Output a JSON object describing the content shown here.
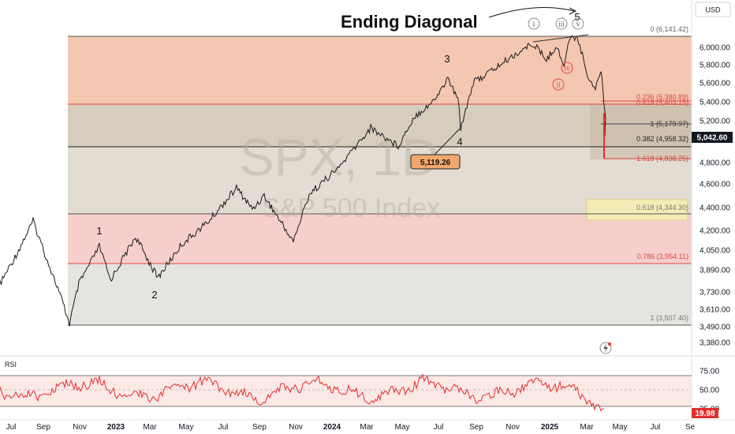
{
  "ui": {
    "currency": "USD",
    "watermark_symbol": "SPX, 1D",
    "watermark_name": "S&P 500 Index",
    "title": "Ending Diagonal",
    "price_tag": "5,042.60",
    "callout": "5,119.26",
    "rsi_title": "RSI",
    "rsi_tag": "19.98"
  },
  "chart_data": [
    {
      "type": "line",
      "title": "SPX, 1D",
      "subtitle": "S&P 500 Index",
      "ylim": [
        3300,
        6250
      ],
      "y_ticks": [
        "6,000.00",
        "5,800.00",
        "5,600.00",
        "5,400.00",
        "5,200.00",
        "5,000.00",
        "4,800.00",
        "4,600.00",
        "4,400.00",
        "4,200.00",
        "4,050.00",
        "3,890.00",
        "3,730.00",
        "3,610.00",
        "3,490.00",
        "3,380.00"
      ],
      "x_ticks": [
        "Jul",
        "Sep",
        "Nov",
        "2023",
        "Mar",
        "May",
        "Jul",
        "Sep",
        "Nov",
        "2024",
        "Mar",
        "May",
        "Jul",
        "Sep",
        "Nov",
        "2025",
        "Mar",
        "May",
        "Jul",
        "Se"
      ],
      "series": [
        {
          "x": [
            "2022-06",
            "2022-08",
            "2022-10",
            "2022-11",
            "2022-12",
            "2023-02",
            "2023-03",
            "2023-04",
            "2023-06",
            "2023-07",
            "2023-08",
            "2023-10",
            "2023-12",
            "2024-02",
            "2024-04",
            "2024-05",
            "2024-07",
            "2024-08",
            "2024-09",
            "2024-10",
            "2024-12",
            "2025-01",
            "2025-02",
            "2025-02",
            "2025-03",
            "2025-03",
            "2025-04"
          ],
          "y": [
            3800,
            4300,
            3490,
            4000,
            3800,
            4180,
            3830,
            4150,
            4300,
            4600,
            4370,
            4110,
            4750,
            5050,
            5250,
            4980,
            5650,
            5119,
            5700,
            5870,
            6090,
            5780,
            6141,
            6100,
            5850,
            5620,
            5040
          ]
        }
      ],
      "fib_levels": [
        {
          "label": "0 (6,141.42)",
          "value": 6141.42
        },
        {
          "label": "0.236 (5,380.89)",
          "value": 5380.89
        },
        {
          "label": "0.618 (5,403.15)",
          "value": 5403.15
        },
        {
          "label": "1 (5,179.97)",
          "value": 5179.97
        },
        {
          "label": "0.382 (4,958.32)",
          "value": 4958.32
        },
        {
          "label": "1.618 (4,838.25)",
          "value": 4838.25
        },
        {
          "label": "0.618 (4,344.30)",
          "value": 4344.3
        },
        {
          "label": "0.786 (3,954.11)",
          "value": 3954.11
        },
        {
          "label": "1 (3,507.40)",
          "value": 3507.4
        }
      ],
      "wave_labels": [
        "1",
        "2",
        "3",
        "4",
        "5",
        "i",
        "ii",
        "iii",
        "iv",
        "v"
      ]
    },
    {
      "type": "line",
      "title": "RSI",
      "ylim": [
        20,
        90
      ],
      "y_ticks": [
        "75.00",
        "50.00",
        "25.00"
      ],
      "levels": [
        70,
        50,
        30
      ],
      "last_value": 19.98
    }
  ],
  "colors": {
    "zone_top": "#f4c7b0",
    "zone_mid": "#d6cdbc",
    "zone_grey": "#e2dcd2",
    "zone_pink": "#f6cfcc",
    "zone_light": "#e6e4e0",
    "fib_red": "#e0463e",
    "line": "#1a1a1a",
    "rsi_line": "#e22f2f",
    "rsi_band": "#fbe9e6",
    "tag_dark": "#131722",
    "tag_red": "#e22f2f",
    "callout": "#f0a86e"
  }
}
